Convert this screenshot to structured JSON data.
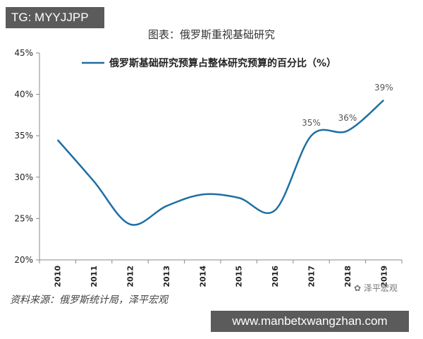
{
  "overlay_tag": "TG: MYYJJPP",
  "figure_title": "图表：俄罗斯重视基础研究",
  "source_note": "资料来源：俄罗斯统计局，泽平宏观",
  "watermark": "泽平宏观",
  "banner": "www.manbetxwangzhan.com",
  "colors": {
    "line": "#1f6fa3",
    "axis": "#888888",
    "text": "#222222"
  },
  "chart_data": {
    "type": "line",
    "title": "",
    "xlabel": "",
    "ylabel": "",
    "categories": [
      "2010",
      "2011",
      "2012",
      "2013",
      "2014",
      "2015",
      "2016",
      "2017",
      "2018",
      "2019"
    ],
    "series": [
      {
        "name": "俄罗斯基础研究预算占整体研究预算的百分比（%）",
        "values": [
          34.5,
          29.5,
          24.3,
          26.5,
          27.9,
          27.5,
          26.0,
          35.0,
          35.6,
          39.3
        ]
      }
    ],
    "data_labels": [
      {
        "index": 7,
        "text": "35%"
      },
      {
        "index": 8,
        "text": "36%"
      },
      {
        "index": 9,
        "text": "39%"
      }
    ],
    "yticks": [
      "20%",
      "25%",
      "30%",
      "35%",
      "40%",
      "45%"
    ],
    "ylim": [
      20,
      45
    ],
    "grid": false,
    "legend_position": "top"
  }
}
